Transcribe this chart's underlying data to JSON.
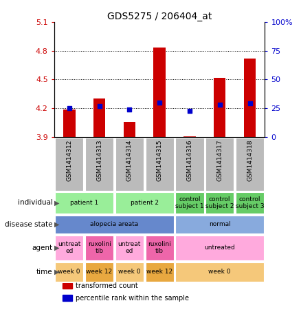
{
  "title": "GDS5275 / 206404_at",
  "samples": [
    "GSM1414312",
    "GSM1414313",
    "GSM1414314",
    "GSM1414315",
    "GSM1414316",
    "GSM1414317",
    "GSM1414318"
  ],
  "red_values": [
    4.19,
    4.3,
    4.06,
    4.83,
    3.91,
    4.52,
    4.72
  ],
  "blue_values": [
    25,
    27,
    24,
    30,
    23,
    28,
    29
  ],
  "ylim_left": [
    3.9,
    5.1
  ],
  "ylim_right": [
    0,
    100
  ],
  "yticks_left": [
    3.9,
    4.2,
    4.5,
    4.8,
    5.1
  ],
  "yticks_right": [
    0,
    25,
    50,
    75,
    100
  ],
  "ytick_labels_left": [
    "3.9",
    "4.2",
    "4.5",
    "4.8",
    "5.1"
  ],
  "ytick_labels_right": [
    "0",
    "25",
    "50",
    "75",
    "100%"
  ],
  "bar_baseline": 3.9,
  "bar_color": "#cc0000",
  "dot_color": "#0000cc",
  "row_labels": [
    "individual",
    "disease state",
    "agent",
    "time"
  ],
  "individual_groups": [
    {
      "label": "patient 1",
      "cols": [
        0,
        1
      ],
      "color": "#99ee99"
    },
    {
      "label": "patient 2",
      "cols": [
        2,
        3
      ],
      "color": "#99ee99"
    },
    {
      "label": "control\nsubject 1",
      "cols": [
        4
      ],
      "color": "#66cc66"
    },
    {
      "label": "control\nsubject 2",
      "cols": [
        5
      ],
      "color": "#66cc66"
    },
    {
      "label": "control\nsubject 3",
      "cols": [
        6
      ],
      "color": "#66cc66"
    }
  ],
  "disease_groups": [
    {
      "label": "alopecia areata",
      "cols": [
        0,
        1,
        2,
        3
      ],
      "color": "#6688cc"
    },
    {
      "label": "normal",
      "cols": [
        4,
        5,
        6
      ],
      "color": "#88aadd"
    }
  ],
  "agent_groups": [
    {
      "label": "untreat\ned",
      "cols": [
        0
      ],
      "color": "#ffaadd"
    },
    {
      "label": "ruxolini\ntib",
      "cols": [
        1
      ],
      "color": "#ee66aa"
    },
    {
      "label": "untreat\ned",
      "cols": [
        2
      ],
      "color": "#ffaadd"
    },
    {
      "label": "ruxolini\ntib",
      "cols": [
        3
      ],
      "color": "#ee66aa"
    },
    {
      "label": "untreated",
      "cols": [
        4,
        5,
        6
      ],
      "color": "#ffaadd"
    }
  ],
  "time_groups": [
    {
      "label": "week 0",
      "cols": [
        0
      ],
      "color": "#f5c87a"
    },
    {
      "label": "week 12",
      "cols": [
        1
      ],
      "color": "#e8a840"
    },
    {
      "label": "week 0",
      "cols": [
        2
      ],
      "color": "#f5c87a"
    },
    {
      "label": "week 12",
      "cols": [
        3
      ],
      "color": "#e8a840"
    },
    {
      "label": "week 0",
      "cols": [
        4,
        5,
        6
      ],
      "color": "#f5c87a"
    }
  ],
  "legend_items": [
    {
      "label": "transformed count",
      "color": "#cc0000"
    },
    {
      "label": "percentile rank within the sample",
      "color": "#0000cc"
    }
  ],
  "sample_bg": "#bbbbbb",
  "sep_color": "#ffffff"
}
